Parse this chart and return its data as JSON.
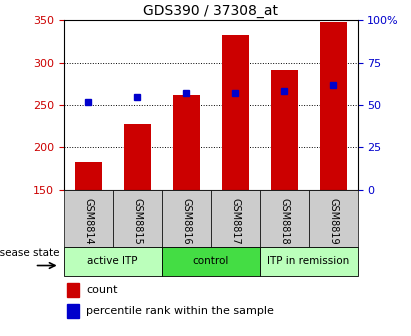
{
  "title": "GDS390 / 37308_at",
  "samples": [
    "GSM8814",
    "GSM8815",
    "GSM8816",
    "GSM8817",
    "GSM8818",
    "GSM8819"
  ],
  "counts": [
    183,
    228,
    262,
    333,
    291,
    348
  ],
  "percentile_ranks": [
    52,
    55,
    57,
    57,
    58,
    62
  ],
  "ylim_left": [
    150,
    350
  ],
  "ylim_right": [
    0,
    100
  ],
  "left_ticks": [
    150,
    200,
    250,
    300,
    350
  ],
  "right_ticks": [
    0,
    25,
    50,
    75,
    100
  ],
  "bar_color": "#cc0000",
  "dot_color": "#0000cc",
  "bar_width": 0.55,
  "groups": [
    {
      "label": "active ITP",
      "samples": [
        0,
        1
      ],
      "color": "#bbffbb"
    },
    {
      "label": "control",
      "samples": [
        2,
        3
      ],
      "color": "#44dd44"
    },
    {
      "label": "ITP in remission",
      "samples": [
        4,
        5
      ],
      "color": "#bbffbb"
    }
  ],
  "disease_state_label": "disease state",
  "legend_count_label": "count",
  "legend_pct_label": "percentile rank within the sample",
  "grid_color": "#000000",
  "background_color": "#ffffff",
  "tick_label_color_left": "#cc0000",
  "tick_label_color_right": "#0000cc",
  "sample_box_color": "#cccccc"
}
